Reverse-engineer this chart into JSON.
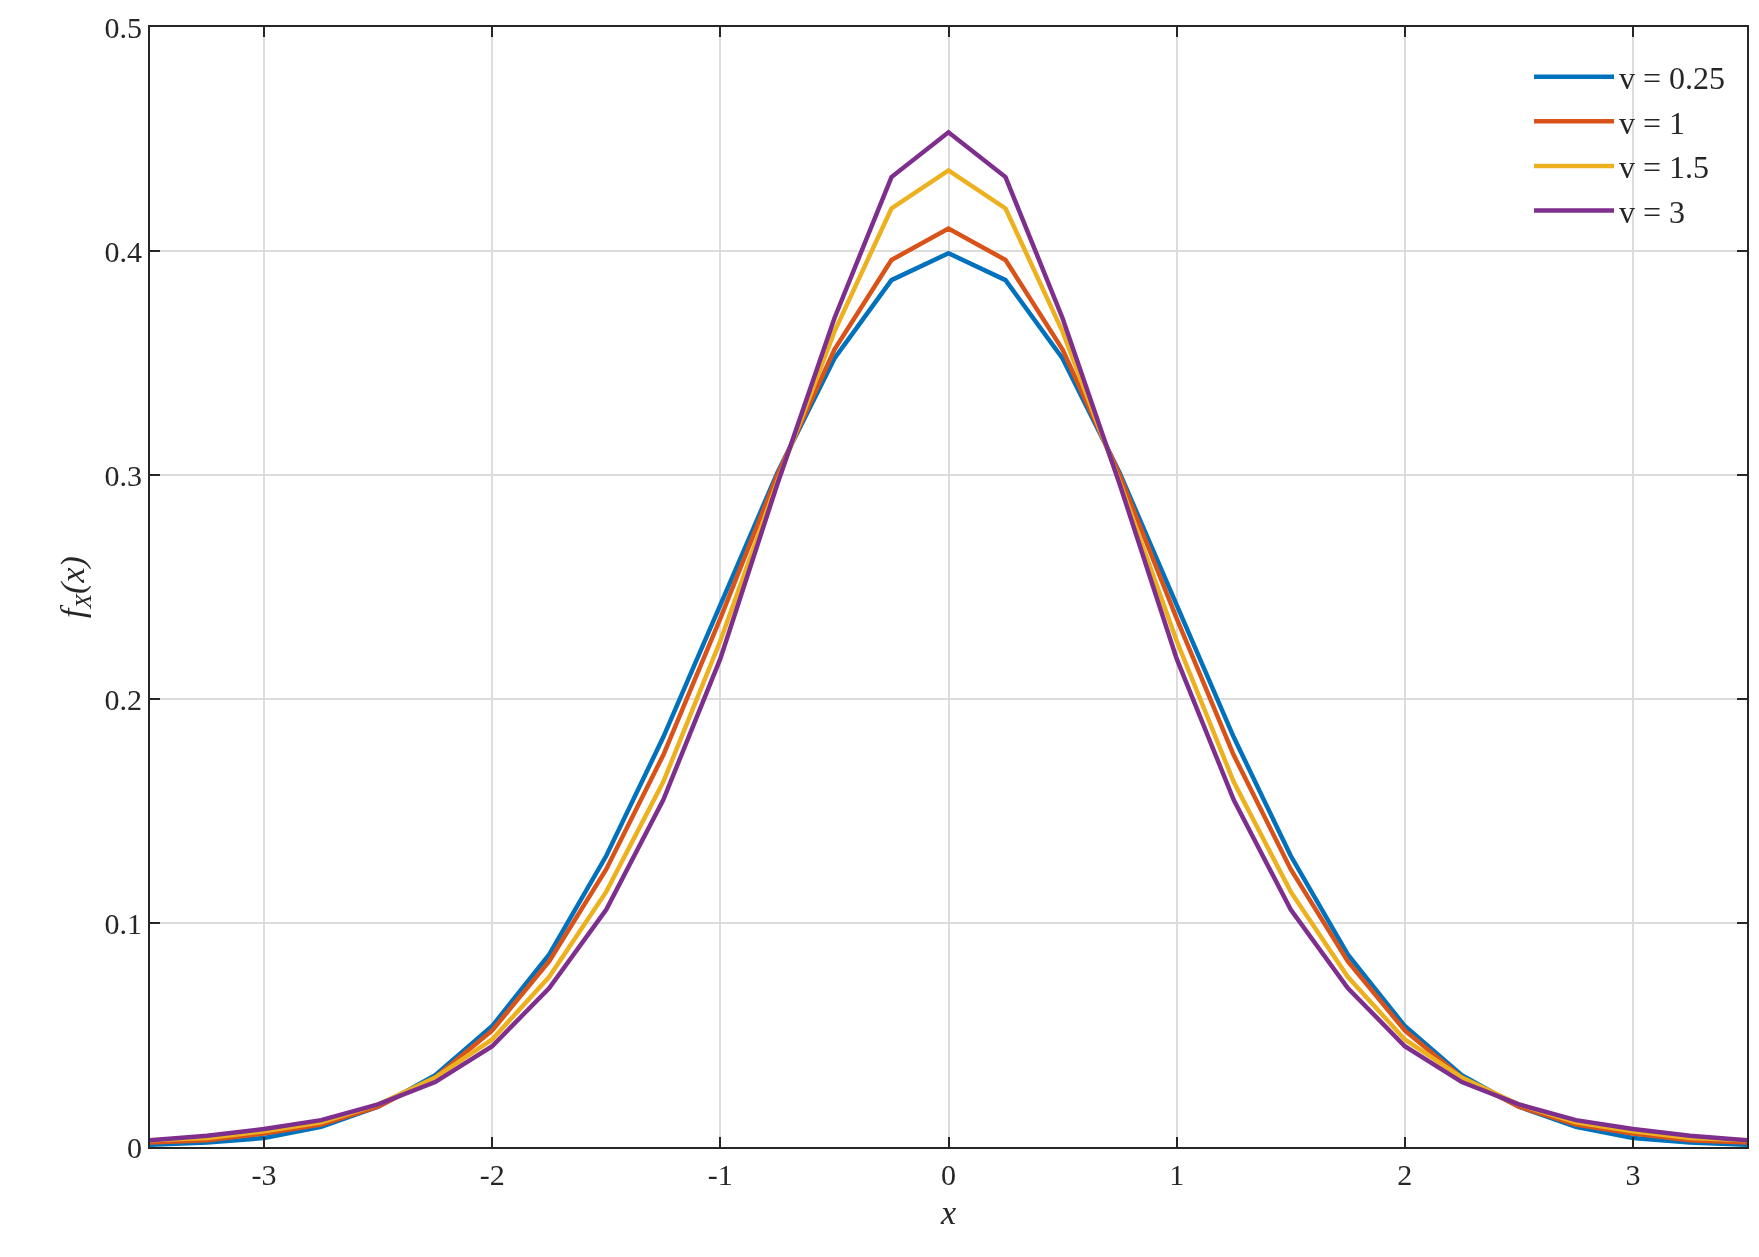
{
  "chart_data": {
    "type": "line",
    "xlabel": "x",
    "ylabel": "f$_{X}$(x)",
    "x": [
      -3.5,
      -3.25,
      -3,
      -2.75,
      -2.5,
      -2.25,
      -2,
      -1.75,
      -1.5,
      -1.25,
      -1,
      -0.75,
      -0.5,
      -0.25,
      0,
      0.25,
      0.5,
      0.75,
      1,
      1.25,
      1.5,
      1.75,
      2,
      2.25,
      2.5,
      2.75,
      3,
      3.25,
      3.5
    ],
    "series": [
      {
        "name": "v = 0.25",
        "color": "#0072bd",
        "values": [
          0.001,
          0.002,
          0.004,
          0.009,
          0.018,
          0.032,
          0.054,
          0.086,
          0.13,
          0.183,
          0.242,
          0.301,
          0.352,
          0.387,
          0.399,
          0.387,
          0.352,
          0.301,
          0.242,
          0.183,
          0.13,
          0.086,
          0.054,
          0.032,
          0.018,
          0.009,
          0.004,
          0.002,
          0.001
        ]
      },
      {
        "name": "v = 1",
        "color": "#d95319",
        "values": [
          0.002,
          0.003,
          0.006,
          0.01,
          0.018,
          0.031,
          0.052,
          0.083,
          0.124,
          0.175,
          0.236,
          0.3,
          0.356,
          0.396,
          0.41,
          0.396,
          0.356,
          0.3,
          0.236,
          0.175,
          0.124,
          0.083,
          0.052,
          0.031,
          0.018,
          0.01,
          0.006,
          0.003,
          0.002
        ]
      },
      {
        "name": "v = 1.5",
        "color": "#edb120",
        "values": [
          0.003,
          0.004,
          0.007,
          0.011,
          0.019,
          0.031,
          0.048,
          0.076,
          0.114,
          0.163,
          0.226,
          0.297,
          0.364,
          0.419,
          0.436,
          0.419,
          0.364,
          0.297,
          0.226,
          0.163,
          0.114,
          0.076,
          0.048,
          0.031,
          0.019,
          0.011,
          0.007,
          0.004,
          0.003
        ]
      },
      {
        "name": "v = 3",
        "color": "#7e2f8e",
        "values": [
          0.003,
          0.005,
          0.008,
          0.012,
          0.019,
          0.029,
          0.045,
          0.071,
          0.106,
          0.155,
          0.218,
          0.296,
          0.37,
          0.433,
          0.453,
          0.433,
          0.37,
          0.296,
          0.218,
          0.155,
          0.106,
          0.071,
          0.045,
          0.029,
          0.019,
          0.012,
          0.008,
          0.005,
          0.003
        ]
      }
    ],
    "xlim": [
      -3.5,
      3.5
    ],
    "xticks": [
      -3,
      -2,
      -1,
      0,
      1,
      2,
      3
    ],
    "ylim": [
      0,
      0.5
    ],
    "yticks": [
      0,
      0.1,
      0.2,
      0.3,
      0.4,
      0.5
    ],
    "grid": true,
    "legend": "top right",
    "line_style": "solid",
    "marker": "none"
  }
}
